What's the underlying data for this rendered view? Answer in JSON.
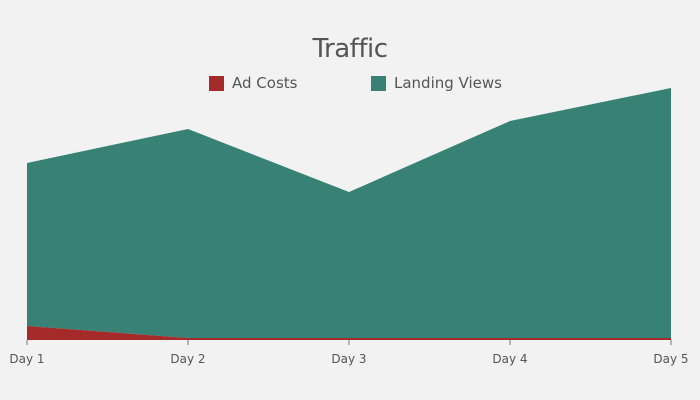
{
  "chart_data": {
    "type": "area",
    "stacked": true,
    "title": "Traffic",
    "xlabel": "",
    "ylabel": "",
    "categories": [
      "Day 1",
      "Day 2",
      "Day 3",
      "Day 4",
      "Day 5"
    ],
    "series": [
      {
        "name": "Ad Costs",
        "color": "#a52a2a",
        "values": [
          14,
          2,
          2,
          2,
          2
        ]
      },
      {
        "name": "Landing Views",
        "color": "#378275",
        "values": [
          163,
          209,
          146,
          217,
          250
        ]
      }
    ],
    "ylim": [
      0,
      255
    ],
    "grid": false,
    "legend_position": "top-center",
    "background": "#f2f2f2"
  }
}
